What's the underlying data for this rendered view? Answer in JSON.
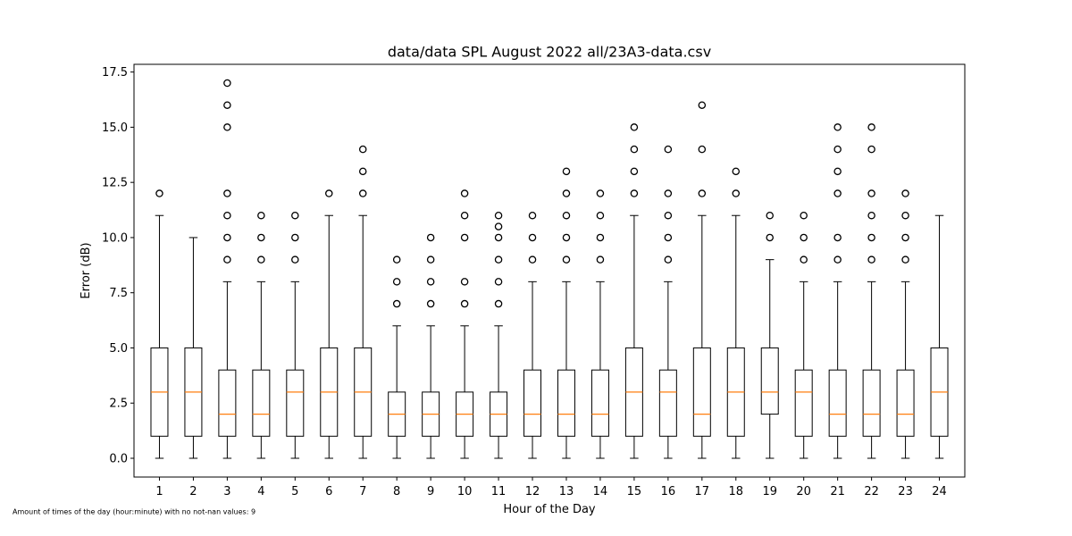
{
  "chart_data": {
    "type": "box",
    "title": "data/data SPL August 2022 all/23A3-data.csv",
    "xlabel": "Hour of the Day",
    "ylabel": "Error (dB)",
    "footnote": "Amount of times of the day (hour:minute) with no not-nan values: 9",
    "ylim": [
      -0.85,
      17.85
    ],
    "yticks": [
      "0.0",
      "2.5",
      "5.0",
      "7.5",
      "10.0",
      "12.5",
      "15.0",
      "17.5"
    ],
    "categories": [
      "1",
      "2",
      "3",
      "4",
      "5",
      "6",
      "7",
      "8",
      "9",
      "10",
      "11",
      "12",
      "13",
      "14",
      "15",
      "16",
      "17",
      "18",
      "19",
      "20",
      "21",
      "22",
      "23",
      "24"
    ],
    "grid": false,
    "colors": {
      "box": "#000000",
      "median": "#ff7f0e",
      "outlier": "#000000",
      "background": "#ffffff"
    },
    "boxes": [
      {
        "hour": "1",
        "whislo": 0,
        "q1": 1,
        "med": 3,
        "q3": 5,
        "whishi": 11,
        "fliers": [
          12
        ]
      },
      {
        "hour": "2",
        "whislo": 0,
        "q1": 1,
        "med": 3,
        "q3": 5,
        "whishi": 10,
        "fliers": []
      },
      {
        "hour": "3",
        "whislo": 0,
        "q1": 1,
        "med": 2,
        "q3": 4,
        "whishi": 8,
        "fliers": [
          9,
          10,
          11,
          12,
          15,
          16,
          17
        ]
      },
      {
        "hour": "4",
        "whislo": 0,
        "q1": 1,
        "med": 2,
        "q3": 4,
        "whishi": 8,
        "fliers": [
          9,
          10,
          11
        ]
      },
      {
        "hour": "5",
        "whislo": 0,
        "q1": 1,
        "med": 3,
        "q3": 4,
        "whishi": 8,
        "fliers": [
          9,
          10,
          11
        ]
      },
      {
        "hour": "6",
        "whislo": 0,
        "q1": 1,
        "med": 3,
        "q3": 5,
        "whishi": 11,
        "fliers": [
          12
        ]
      },
      {
        "hour": "7",
        "whislo": 0,
        "q1": 1,
        "med": 3,
        "q3": 5,
        "whishi": 11,
        "fliers": [
          12,
          13,
          14
        ]
      },
      {
        "hour": "8",
        "whislo": 0,
        "q1": 1,
        "med": 2,
        "q3": 3,
        "whishi": 6,
        "fliers": [
          7,
          8,
          9
        ]
      },
      {
        "hour": "9",
        "whislo": 0,
        "q1": 1,
        "med": 2,
        "q3": 3,
        "whishi": 6,
        "fliers": [
          7,
          8,
          9,
          10
        ]
      },
      {
        "hour": "10",
        "whislo": 0,
        "q1": 1,
        "med": 2,
        "q3": 3,
        "whishi": 6,
        "fliers": [
          7,
          8,
          10,
          11,
          12
        ]
      },
      {
        "hour": "11",
        "whislo": 0,
        "q1": 1,
        "med": 2,
        "q3": 3,
        "whishi": 6,
        "fliers": [
          7,
          8,
          9,
          10,
          10.5,
          11
        ]
      },
      {
        "hour": "12",
        "whislo": 0,
        "q1": 1,
        "med": 2,
        "q3": 4,
        "whishi": 8,
        "fliers": [
          9,
          10,
          11
        ]
      },
      {
        "hour": "13",
        "whislo": 0,
        "q1": 1,
        "med": 2,
        "q3": 4,
        "whishi": 8,
        "fliers": [
          9,
          10,
          11,
          12,
          13
        ]
      },
      {
        "hour": "14",
        "whislo": 0,
        "q1": 1,
        "med": 2,
        "q3": 4,
        "whishi": 8,
        "fliers": [
          9,
          10,
          11,
          12
        ]
      },
      {
        "hour": "15",
        "whislo": 0,
        "q1": 1,
        "med": 3,
        "q3": 5,
        "whishi": 11,
        "fliers": [
          12,
          13,
          14,
          15
        ]
      },
      {
        "hour": "16",
        "whislo": 0,
        "q1": 1,
        "med": 3,
        "q3": 4,
        "whishi": 8,
        "fliers": [
          9,
          10,
          11,
          12,
          14
        ]
      },
      {
        "hour": "17",
        "whislo": 0,
        "q1": 1,
        "med": 2,
        "q3": 5,
        "whishi": 11,
        "fliers": [
          12,
          14,
          16
        ]
      },
      {
        "hour": "18",
        "whislo": 0,
        "q1": 1,
        "med": 3,
        "q3": 5,
        "whishi": 11,
        "fliers": [
          12,
          13
        ]
      },
      {
        "hour": "19",
        "whislo": 0,
        "q1": 2,
        "med": 3,
        "q3": 5,
        "whishi": 9,
        "fliers": [
          10,
          11
        ]
      },
      {
        "hour": "20",
        "whislo": 0,
        "q1": 1,
        "med": 3,
        "q3": 4,
        "whishi": 8,
        "fliers": [
          9,
          10,
          11
        ]
      },
      {
        "hour": "21",
        "whislo": 0,
        "q1": 1,
        "med": 2,
        "q3": 4,
        "whishi": 8,
        "fliers": [
          9,
          10,
          12,
          13,
          14,
          15
        ]
      },
      {
        "hour": "22",
        "whislo": 0,
        "q1": 1,
        "med": 2,
        "q3": 4,
        "whishi": 8,
        "fliers": [
          9,
          10,
          11,
          12,
          14,
          15
        ]
      },
      {
        "hour": "23",
        "whislo": 0,
        "q1": 1,
        "med": 2,
        "q3": 4,
        "whishi": 8,
        "fliers": [
          9,
          10,
          11,
          12
        ]
      },
      {
        "hour": "24",
        "whislo": 0,
        "q1": 1,
        "med": 3,
        "q3": 5,
        "whishi": 11,
        "fliers": []
      }
    ]
  }
}
